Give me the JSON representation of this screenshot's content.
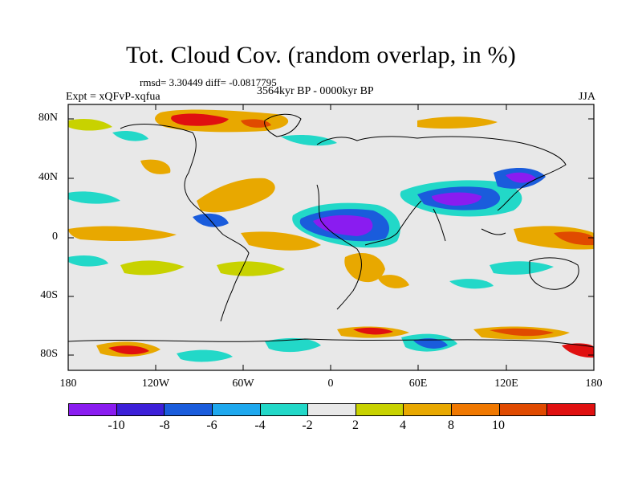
{
  "title": "Tot. Cloud Cov. (random overlap, in %)",
  "stats": "rmsd= 3.30449 diff= -0.0817795",
  "period": "3564kyr BP - 0000kyr BP",
  "expt": "Expt = xQFvP-xqfua",
  "season": "JJA",
  "lat_labels": [
    "80N",
    "40N",
    "0",
    "40S",
    "80S"
  ],
  "lon_labels": [
    "180",
    "120W",
    "60W",
    "0",
    "60E",
    "120E",
    "180"
  ],
  "colorbar": {
    "colors": [
      "#8a1cf0",
      "#3c1fd8",
      "#1a5cdc",
      "#1ea8ee",
      "#22d8c8",
      "#e8e8e8",
      "#c8d200",
      "#e8a800",
      "#f07800",
      "#e04a00",
      "#e01010"
    ],
    "labels": [
      "-10",
      "-8",
      "-6",
      "-4",
      "-2",
      "2",
      "4",
      "8",
      "10"
    ]
  }
}
